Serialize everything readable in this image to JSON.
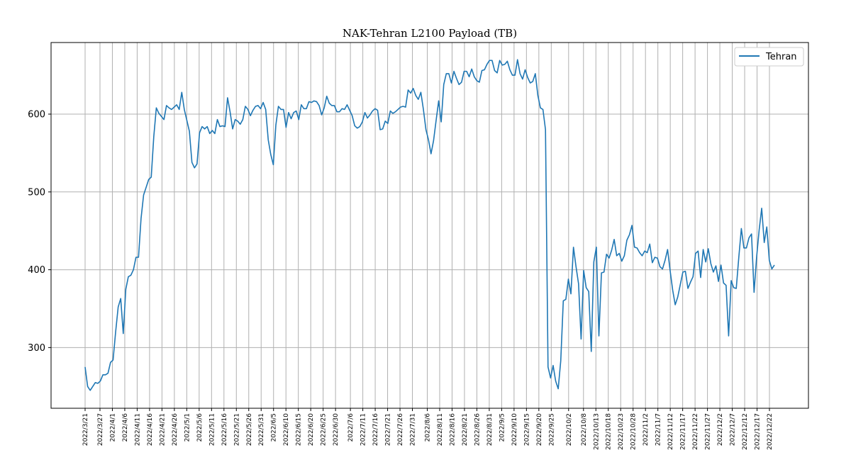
{
  "chart_data": {
    "type": "line",
    "title": "NAK-Tehran L2100 Payload (TB)",
    "xlabel": "",
    "ylabel": "",
    "ylim": [
      222,
      692
    ],
    "yticks": [
      300,
      400,
      500,
      600
    ],
    "grid": true,
    "legend_position": "top-right",
    "x_start": "2022/3/21",
    "x_end": "2022/12/24",
    "tick_labels": [
      "2022/3/21",
      "2022/3/27",
      "2022/4/1",
      "2022/4/6",
      "2022/4/11",
      "2022/4/16",
      "2022/4/21",
      "2022/4/26",
      "2022/5/1",
      "2022/5/6",
      "2022/5/11",
      "2022/5/16",
      "2022/5/21",
      "2022/5/26",
      "2022/5/31",
      "2022/6/5",
      "2022/6/10",
      "2022/6/15",
      "2022/6/20",
      "2022/6/25",
      "2022/6/30",
      "2022/7/6",
      "2022/7/11",
      "2022/7/16",
      "2022/7/21",
      "2022/7/26",
      "2022/7/31",
      "2022/8/6",
      "2022/8/11",
      "2022/8/16",
      "2022/8/21",
      "2022/8/26",
      "2022/8/31",
      "2022/9/5",
      "2022/9/10",
      "2022/9/15",
      "2022/9/20",
      "2022/9/25",
      "2022/10/2",
      "2022/10/8",
      "2022/10/13",
      "2022/10/18",
      "2022/10/23",
      "2022/10/28",
      "2022/11/2",
      "2022/11/7",
      "2022/11/12",
      "2022/11/17",
      "2022/11/22",
      "2022/11/27",
      "2022/12/2",
      "2022/12/7",
      "2022/12/12",
      "2022/12/17",
      "2022/12/22"
    ],
    "series": [
      {
        "name": "Tehran",
        "color": "#1f77b4",
        "values": [
          275,
          250,
          245,
          250,
          255,
          254,
          257,
          265,
          265,
          267,
          281,
          284,
          320,
          352,
          363,
          318,
          375,
          391,
          393,
          400,
          416,
          416,
          466,
          496,
          506,
          516,
          519,
          571,
          608,
          601,
          597,
          593,
          611,
          608,
          606,
          609,
          612,
          606,
          628,
          606,
          592,
          578,
          538,
          531,
          536,
          576,
          584,
          581,
          584,
          575,
          579,
          575,
          593,
          584,
          585,
          584,
          621,
          603,
          581,
          593,
          591,
          587,
          593,
          610,
          606,
          598,
          605,
          610,
          611,
          607,
          615,
          606,
          567,
          548,
          535,
          586,
          610,
          606,
          606,
          583,
          602,
          594,
          602,
          604,
          593,
          612,
          607,
          607,
          616,
          615,
          617,
          616,
          611,
          599,
          608,
          623,
          614,
          611,
          611,
          603,
          603,
          607,
          606,
          612,
          605,
          598,
          585,
          582,
          584,
          590,
          602,
          595,
          599,
          604,
          607,
          605,
          580,
          581,
          591,
          588,
          604,
          601,
          603,
          606,
          609,
          610,
          609,
          631,
          627,
          633,
          624,
          619,
          628,
          606,
          580,
          567,
          549,
          566,
          592,
          617,
          590,
          638,
          652,
          652,
          640,
          655,
          646,
          638,
          641,
          655,
          655,
          648,
          658,
          648,
          643,
          641,
          656,
          657,
          664,
          669,
          669,
          656,
          653,
          669,
          663,
          664,
          668,
          657,
          650,
          650,
          670,
          652,
          645,
          657,
          647,
          640,
          642,
          652,
          624,
          608,
          606,
          580,
          275,
          261,
          277,
          257,
          247,
          283,
          360,
          362,
          388,
          369,
          429,
          404,
          382,
          311,
          399,
          377,
          372,
          295,
          410,
          429,
          315,
          396,
          397,
          420,
          415,
          425,
          439,
          418,
          421,
          411,
          418,
          438,
          445,
          457,
          429,
          428,
          422,
          418,
          424,
          422,
          433,
          409,
          416,
          415,
          404,
          401,
          412,
          426,
          399,
          374,
          355,
          365,
          381,
          397,
          398,
          376,
          384,
          391,
          421,
          424,
          390,
          426,
          410,
          427,
          408,
          397,
          405,
          385,
          406,
          383,
          380,
          315,
          386,
          377,
          376,
          416,
          453,
          428,
          428,
          441,
          446,
          371,
          416,
          451,
          479,
          435,
          455,
          412,
          401,
          406
        ]
      }
    ]
  }
}
